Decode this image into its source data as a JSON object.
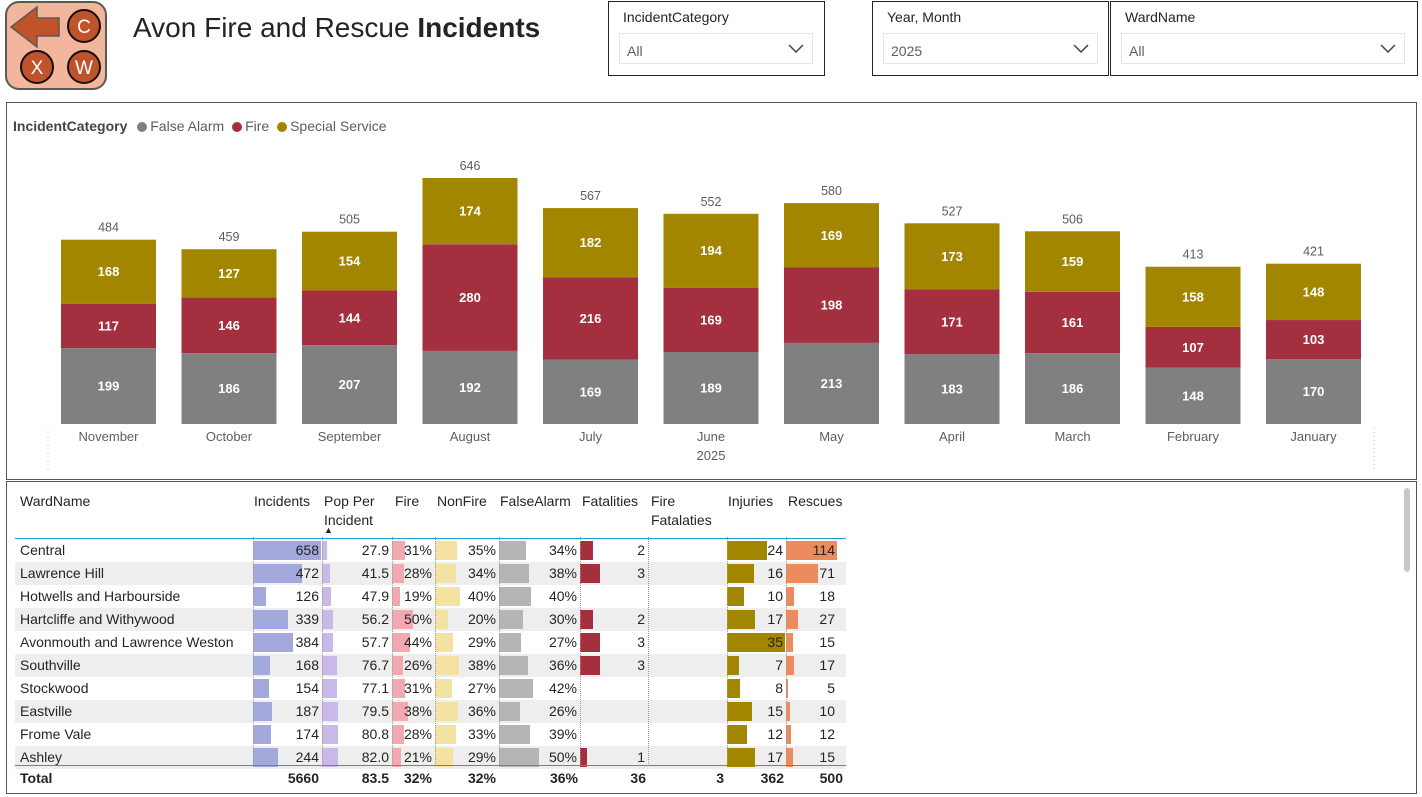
{
  "header": {
    "title_regular": "Avon Fire and Rescue",
    "title_bold": "Incidents",
    "logo_letters": {
      "c": "C",
      "x": "X",
      "w": "W"
    }
  },
  "slicers": [
    {
      "label": "IncidentCategory",
      "value": "All"
    },
    {
      "label": "Year, Month",
      "value": "2025"
    },
    {
      "label": "WardName",
      "value": "All"
    }
  ],
  "legend": {
    "title": "IncidentCategory",
    "items": [
      {
        "name": "False Alarm",
        "color": "#808080"
      },
      {
        "name": "Fire",
        "color": "#a4303f"
      },
      {
        "name": "Special Service",
        "color": "#a38600"
      }
    ]
  },
  "chart_data": {
    "type": "bar",
    "stacked": true,
    "title": "",
    "xlabel": "2025",
    "categories": [
      "November",
      "October",
      "September",
      "August",
      "July",
      "June",
      "May",
      "April",
      "March",
      "February",
      "January"
    ],
    "series": [
      {
        "name": "False Alarm",
        "color": "#808080",
        "values": [
          199,
          186,
          207,
          192,
          169,
          189,
          213,
          183,
          186,
          148,
          170
        ]
      },
      {
        "name": "Fire",
        "color": "#a4303f",
        "values": [
          117,
          146,
          144,
          280,
          216,
          169,
          198,
          171,
          161,
          107,
          103
        ]
      },
      {
        "name": "Special Service",
        "color": "#a38600",
        "values": [
          168,
          127,
          154,
          174,
          182,
          194,
          169,
          173,
          159,
          158,
          148
        ]
      }
    ],
    "totals": [
      484,
      459,
      505,
      646,
      567,
      552,
      580,
      527,
      506,
      413,
      421
    ],
    "ylim": [
      0,
      646
    ]
  },
  "table": {
    "headers": {
      "ward": "WardName",
      "incidents": "Incidents",
      "pop": "Pop Per Incident",
      "fire": "Fire",
      "nonfire": "NonFire",
      "falsealarm": "FalseAlarm",
      "fatalities": "Fatalities",
      "firefatal": "Fire Fatalaties",
      "injuries": "Injuries",
      "rescues": "Rescues"
    },
    "sort_indicator": "▲",
    "rows": [
      {
        "ward": "Central",
        "incidents": "658",
        "pop": "27.9",
        "fire": "31%",
        "nonfire": "35%",
        "falsealarm": "34%",
        "fatalities": "2",
        "firefatal": "",
        "injuries": "24",
        "rescues": "114"
      },
      {
        "ward": "Lawrence Hill",
        "incidents": "472",
        "pop": "41.5",
        "fire": "28%",
        "nonfire": "34%",
        "falsealarm": "38%",
        "fatalities": "3",
        "firefatal": "",
        "injuries": "16",
        "rescues": "71"
      },
      {
        "ward": "Hotwells and Harbourside",
        "incidents": "126",
        "pop": "47.9",
        "fire": "19%",
        "nonfire": "40%",
        "falsealarm": "40%",
        "fatalities": "",
        "firefatal": "",
        "injuries": "10",
        "rescues": "18"
      },
      {
        "ward": "Hartcliffe and Withywood",
        "incidents": "339",
        "pop": "56.2",
        "fire": "50%",
        "nonfire": "20%",
        "falsealarm": "30%",
        "fatalities": "2",
        "firefatal": "",
        "injuries": "17",
        "rescues": "27"
      },
      {
        "ward": "Avonmouth and Lawrence Weston",
        "incidents": "384",
        "pop": "57.7",
        "fire": "44%",
        "nonfire": "29%",
        "falsealarm": "27%",
        "fatalities": "3",
        "firefatal": "",
        "injuries": "35",
        "rescues": "15"
      },
      {
        "ward": "Southville",
        "incidents": "168",
        "pop": "76.7",
        "fire": "26%",
        "nonfire": "38%",
        "falsealarm": "36%",
        "fatalities": "3",
        "firefatal": "",
        "injuries": "7",
        "rescues": "17"
      },
      {
        "ward": "Stockwood",
        "incidents": "154",
        "pop": "77.1",
        "fire": "31%",
        "nonfire": "27%",
        "falsealarm": "42%",
        "fatalities": "",
        "firefatal": "",
        "injuries": "8",
        "rescues": "5"
      },
      {
        "ward": "Eastville",
        "incidents": "187",
        "pop": "79.5",
        "fire": "38%",
        "nonfire": "36%",
        "falsealarm": "26%",
        "fatalities": "",
        "firefatal": "",
        "injuries": "15",
        "rescues": "10"
      },
      {
        "ward": "Frome Vale",
        "incidents": "174",
        "pop": "80.8",
        "fire": "28%",
        "nonfire": "33%",
        "falsealarm": "39%",
        "fatalities": "",
        "firefatal": "",
        "injuries": "12",
        "rescues": "12"
      },
      {
        "ward": "Ashley",
        "incidents": "244",
        "pop": "82.0",
        "fire": "21%",
        "nonfire": "29%",
        "falsealarm": "50%",
        "fatalities": "1",
        "firefatal": "",
        "injuries": "17",
        "rescues": "15"
      }
    ],
    "totals": {
      "label": "Total",
      "incidents": "5660",
      "pop": "83.5",
      "fire": "32%",
      "nonfire": "32%",
      "falsealarm": "36%",
      "fatalities": "36",
      "firefatal": "3",
      "injuries": "362",
      "rescues": "500"
    },
    "bar_colors": {
      "incidents": "#a3a9dc",
      "pop": "#c9b8e8",
      "fire": "#f2aab0",
      "nonfire": "#f3e2a1",
      "falsealarm": "#b5b5b5",
      "fatalities": "#a4303f",
      "injuries": "#a38600",
      "rescues": "#ec8b5e"
    }
  }
}
